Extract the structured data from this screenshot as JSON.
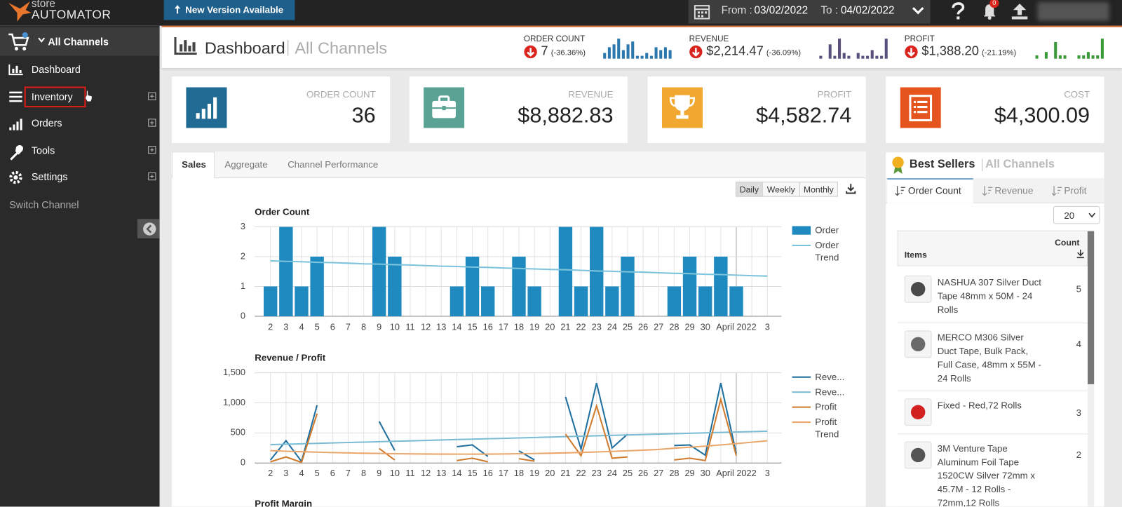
{
  "topbar": {
    "logo_small": "store",
    "logo": "AUTOMATOR",
    "new_version": "New Version Available",
    "from_label": "From :",
    "from_date": "03/02/2022",
    "to_label": "To :",
    "to_date": "04/02/2022",
    "notifications": "0"
  },
  "sidebar": {
    "channel": "All Channels",
    "menu": [
      "Dashboard",
      "Inventory",
      "Orders",
      "Tools",
      "Settings"
    ],
    "switch_channel": "Switch Channel"
  },
  "header": {
    "title": "Dashboard",
    "subtitle": "All Channels",
    "metrics": [
      {
        "label": "ORDER COUNT",
        "value": "7",
        "change": "(-36.36%)",
        "color": "#2a78ad",
        "spark": [
          2,
          4,
          5,
          7,
          3,
          5,
          6,
          1,
          1,
          2,
          1,
          4,
          3,
          4,
          3
        ]
      },
      {
        "label": "REVENUE",
        "value": "$2,214.47",
        "change": "(-36.09%)",
        "color": "#5b4f7d",
        "spark": [
          1,
          0,
          5,
          1,
          7,
          2,
          1,
          0,
          2,
          1,
          1,
          3,
          1,
          1,
          7
        ]
      },
      {
        "label": "PROFIT",
        "value": "$1,388.20",
        "change": "(-21.19%)",
        "color": "#3a9a3a",
        "spark": [
          1,
          0,
          2,
          0,
          5,
          1,
          1,
          0,
          0,
          1,
          1,
          2,
          1,
          1,
          6
        ]
      }
    ]
  },
  "cards": [
    {
      "label": "ORDER COUNT",
      "value": "36"
    },
    {
      "label": "REVENUE",
      "value": "$8,882.83"
    },
    {
      "label": "PROFIT",
      "value": "$4,582.74"
    },
    {
      "label": "COST",
      "value": "$4,300.09"
    }
  ],
  "tabs": [
    "Sales",
    "Aggregate",
    "Channel Performance"
  ],
  "periods": [
    "Daily",
    "Weekly",
    "Monthly"
  ],
  "chart_data": [
    {
      "type": "bar",
      "title": "Order Count",
      "categories": [
        "2",
        "3",
        "4",
        "5",
        "6",
        "7",
        "8",
        "9",
        "10",
        "11",
        "12",
        "13",
        "14",
        "15",
        "16",
        "17",
        "18",
        "19",
        "20",
        "21",
        "22",
        "23",
        "24",
        "25",
        "26",
        "27",
        "28",
        "29",
        "30",
        null,
        "April 2022",
        null,
        "3"
      ],
      "series": [
        {
          "name": "Order",
          "type": "bar",
          "color": "#1f8ac0",
          "values": [
            1,
            3,
            1,
            2,
            0,
            0,
            0,
            3,
            2,
            0,
            0,
            0,
            1,
            2,
            1,
            0,
            2,
            1,
            0,
            3,
            1,
            3,
            1,
            2,
            0,
            0,
            1,
            2,
            1,
            2,
            1,
            0,
            0
          ]
        },
        {
          "name": "Order Trend",
          "type": "line",
          "color": "#7cc3dc",
          "values": [
            1.86,
            1.84,
            1.83,
            1.81,
            1.8,
            1.78,
            1.76,
            1.75,
            1.73,
            1.72,
            1.7,
            1.68,
            1.67,
            1.65,
            1.64,
            1.62,
            1.6,
            1.59,
            1.57,
            1.56,
            1.54,
            1.52,
            1.51,
            1.49,
            1.48,
            1.46,
            1.44,
            1.43,
            1.41,
            1.4,
            1.38,
            1.36,
            1.35
          ]
        }
      ],
      "ylim": [
        0,
        3
      ],
      "yticks": [
        0,
        1,
        2,
        3
      ],
      "grid": true
    },
    {
      "type": "line",
      "title": "Revenue / Profit",
      "categories": [
        "2",
        "3",
        "4",
        "5",
        "6",
        "7",
        "8",
        "9",
        "10",
        "11",
        "12",
        "13",
        "14",
        "15",
        "16",
        "17",
        "18",
        "19",
        "20",
        "21",
        "22",
        "23",
        "24",
        "25",
        "26",
        "27",
        "28",
        "29",
        "30",
        null,
        "April 2022",
        null,
        "3"
      ],
      "series": [
        {
          "name": "Reve...",
          "type": "line",
          "color": "#1f6f9f",
          "values": [
            50,
            370,
            25,
            960,
            null,
            null,
            null,
            690,
            210,
            null,
            null,
            null,
            270,
            300,
            110,
            null,
            200,
            50,
            null,
            1100,
            230,
            1330,
            250,
            480,
            null,
            null,
            290,
            300,
            130,
            1330,
            155,
            null,
            null
          ]
        },
        {
          "name": "Reve...",
          "type": "line",
          "color": "#7bbcd5",
          "values": [
            305,
            312,
            319,
            326,
            333,
            340,
            347,
            354,
            361,
            368,
            375,
            382,
            389,
            396,
            403,
            410,
            417,
            424,
            431,
            438,
            445,
            452,
            459,
            466,
            473,
            480,
            487,
            494,
            501,
            508,
            515,
            522,
            529
          ]
        },
        {
          "name": "Profit",
          "type": "line",
          "color": "#d07a2c",
          "values": [
            20,
            100,
            10,
            820,
            null,
            null,
            null,
            240,
            50,
            null,
            null,
            null,
            40,
            80,
            20,
            null,
            70,
            30,
            null,
            480,
            120,
            950,
            80,
            100,
            null,
            null,
            50,
            80,
            40,
            1060,
            120,
            null,
            null
          ]
        },
        {
          "name": "Profit Trend",
          "type": "line",
          "color": "#eaa76b",
          "values": [
            205,
            195,
            187,
            180,
            173,
            167,
            162,
            158,
            154,
            151,
            149,
            148,
            147,
            147,
            148,
            150,
            153,
            157,
            162,
            168,
            175,
            183,
            192,
            202,
            213,
            225,
            245,
            262,
            280,
            300,
            322,
            345,
            370
          ]
        }
      ],
      "ylim": [
        0,
        1500
      ],
      "yticks": [
        0,
        500,
        {
          "value": 1000,
          "label": "1,000"
        },
        {
          "value": 1500,
          "label": "1,500"
        }
      ],
      "grid": true
    }
  ],
  "next_chart_title": "Profit Margin",
  "best_sellers": {
    "title": "Best Sellers",
    "subtitle": "All Channels",
    "tabs": [
      "Order Count",
      "Revenue",
      "Profit"
    ],
    "page_size": "20",
    "columns": [
      "Items",
      "Count"
    ],
    "rows": [
      {
        "item": "NASHUA 307 Silver Duct Tape 48mm x 50M - 24 Rolls",
        "count": 5
      },
      {
        "item": "MERCO M306 Silver Duct Tape, Bulk Pack, Full Case, 48mm x 55M - 24 Rolls",
        "count": 4
      },
      {
        "item": "Fixed - Red,72 Rolls",
        "count": 3
      },
      {
        "item": "3M Venture Tape Aluminum Foil Tape 1520CW Silver 72mm x 45.7M - 12 Rolls - 72mm,12 Rolls",
        "count": 2
      }
    ]
  }
}
